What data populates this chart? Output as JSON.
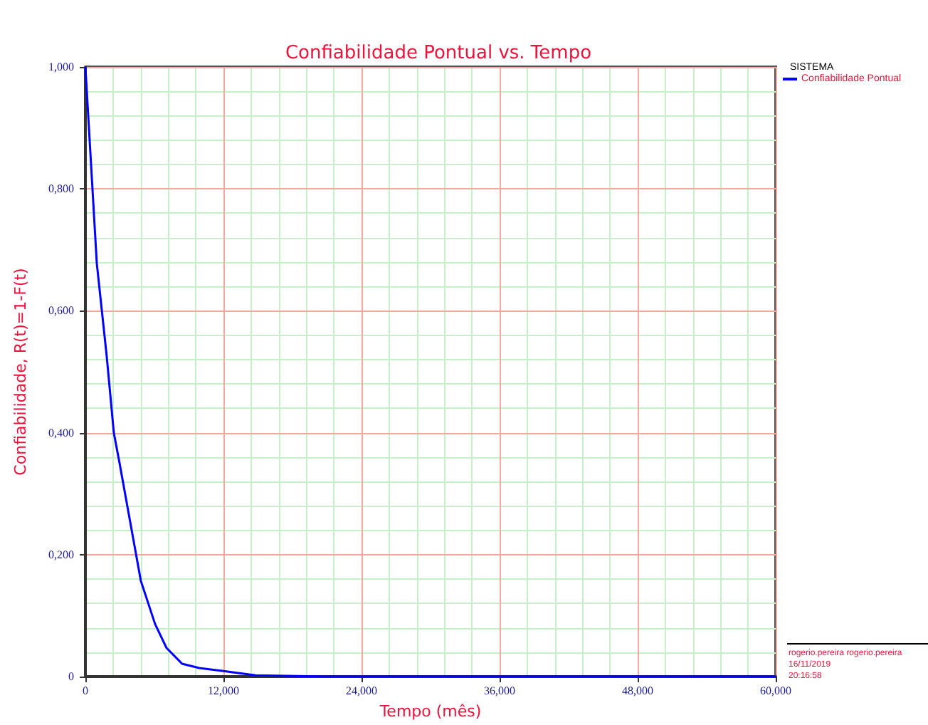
{
  "chart_data": {
    "type": "line",
    "title": "Confiabilidade Pontual vs. Tempo",
    "xlabel": "Tempo (mês)",
    "ylabel": "Confiabilidade, R(t)=1-F(t)",
    "legend_title": "SISTEMA",
    "x": [
      0,
      0.99,
      1.85,
      2.47,
      2.97,
      4.82,
      6.06,
      7.05,
      8.4,
      9.9,
      12,
      14.8,
      21,
      60
    ],
    "series": [
      {
        "name": "Confiabilidade Pontual",
        "color": "#0000ff",
        "values": [
          1.0,
          0.678,
          0.526,
          0.4,
          0.35,
          0.157,
          0.086,
          0.047,
          0.021,
          0.014,
          0.009,
          0.002,
          0,
          0
        ]
      }
    ],
    "xlim": [
      0,
      60
    ],
    "xticks": [
      0,
      {
        "value": 12,
        "label": "12,000"
      },
      {
        "value": 24,
        "label": "24,000"
      },
      {
        "value": 36,
        "label": "36,000"
      },
      {
        "value": 48,
        "label": "48,000"
      },
      {
        "value": 60,
        "label": "60,000"
      }
    ],
    "ylim": [
      0,
      1
    ],
    "yticks": [
      0,
      {
        "value": 0.2,
        "label": "0,200"
      },
      {
        "value": 0.4,
        "label": "0,400"
      },
      {
        "value": 0.6,
        "label": "0,600"
      },
      {
        "value": 0.8,
        "label": "0,800"
      },
      {
        "value": 1,
        "label": "1,000"
      }
    ],
    "grid": true,
    "legend": "right",
    "marker": "none",
    "line_style": "solid",
    "annotations": [
      "rogerio.pereira rogerio.pereira",
      "16/11/2019",
      "20:16:58"
    ]
  }
}
